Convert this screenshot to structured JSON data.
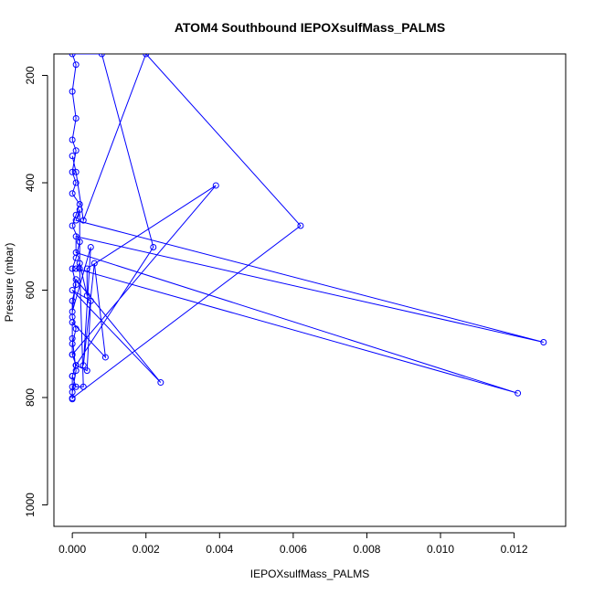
{
  "chart_data": {
    "type": "line",
    "title": "ATOM4 Southbound IEPOXsulfMass_PALMS",
    "xlabel": "IEPOXsulfMass_PALMS",
    "ylabel": "Pressure (mbar)",
    "xlim": [
      -0.0005,
      0.0134
    ],
    "ylim": [
      1040,
      160
    ],
    "y_reversed": true,
    "x_ticks": [
      0.0,
      0.002,
      0.004,
      0.006,
      0.008,
      0.01,
      0.012
    ],
    "x_tick_labels": [
      "0.000",
      "0.002",
      "0.004",
      "0.006",
      "0.008",
      "0.010",
      "0.012"
    ],
    "y_ticks": [
      200,
      400,
      600,
      800,
      1000
    ],
    "y_tick_labels": [
      "200",
      "400",
      "600",
      "800",
      "1000"
    ],
    "grid": false,
    "legend": "none",
    "series": [
      {
        "color": "#0000ff",
        "style": "line+circle-markers",
        "points": [
          [
            0.0,
            803
          ],
          [
            0.0,
            780
          ],
          [
            0.0,
            760
          ],
          [
            0.0001,
            740
          ],
          [
            0.0,
            720
          ],
          [
            0.0,
            700
          ],
          [
            0.0001,
            672
          ],
          [
            0.0,
            650
          ],
          [
            0.0,
            620
          ],
          [
            0.0001,
            590
          ],
          [
            0.0,
            560
          ],
          [
            0.0001,
            540
          ],
          [
            0.0002,
            510
          ],
          [
            0.0,
            480
          ],
          [
            0.0001,
            460
          ],
          [
            0.0002,
            440
          ],
          [
            0.0,
            420
          ],
          [
            0.0001,
            400
          ],
          [
            0.0,
            380
          ],
          [
            0.0001,
            340
          ],
          [
            0.0,
            320
          ],
          [
            0.0001,
            280
          ],
          [
            0.0,
            230
          ],
          [
            0.0001,
            180
          ],
          [
            0.0,
            160
          ],
          [
            0.0008,
            160
          ],
          [
            0.0022,
            520
          ],
          [
            0.0001,
            740
          ],
          [
            0.0,
            760
          ],
          [
            0.0001,
            780
          ],
          [
            0.0003,
            780
          ],
          [
            0.0002,
            560
          ],
          [
            0.0002,
            450
          ],
          [
            0.0001,
            470
          ],
          [
            0.0128,
            697
          ],
          [
            0.0001,
            500
          ],
          [
            0.0001,
            530
          ],
          [
            0.0121,
            792
          ],
          [
            0.0001,
            560
          ],
          [
            0.0002,
            550
          ],
          [
            0.0004,
            610
          ],
          [
            0.0004,
            560
          ],
          [
            0.0039,
            405
          ],
          [
            0.0,
            720
          ],
          [
            0.0001,
            740
          ],
          [
            0.0004,
            750
          ],
          [
            0.0005,
            620
          ],
          [
            0.0,
            600
          ],
          [
            0.0024,
            772
          ],
          [
            0.0001,
            580
          ],
          [
            0.0,
            640
          ],
          [
            0.0005,
            520
          ],
          [
            0.0003,
            740
          ],
          [
            0.0006,
            550
          ],
          [
            0.0009,
            725
          ],
          [
            0.0,
            660
          ],
          [
            0.0,
            690
          ],
          [
            0.0001,
            750
          ],
          [
            0.0,
            790
          ],
          [
            0.0,
            801
          ],
          [
            0.0062,
            480
          ],
          [
            0.002,
            160
          ],
          [
            0.0003,
            470
          ],
          [
            0.0001,
            380
          ],
          [
            0.0,
            350
          ]
        ]
      }
    ]
  }
}
